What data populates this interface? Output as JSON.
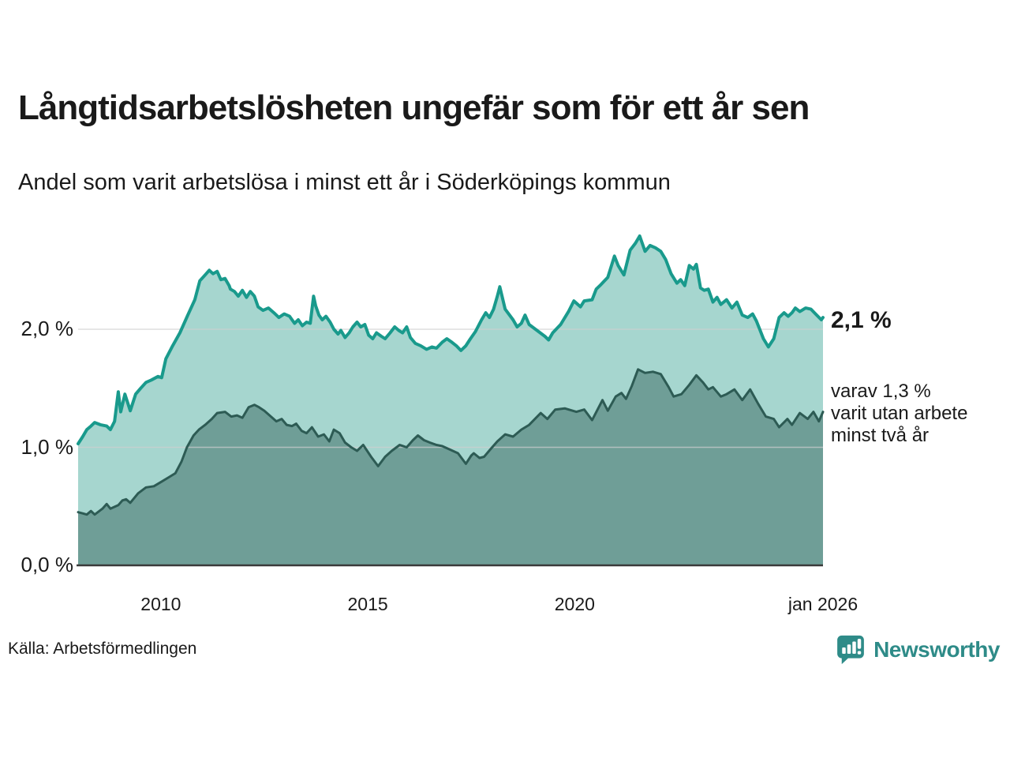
{
  "header": {
    "title": "Långtidsarbetslösheten ungefär som för ett år sen",
    "subtitle": "Andel som varit arbetslösa i minst ett år i Söderköpings kommun"
  },
  "annotations": {
    "latest_total": "2,1 %",
    "latest_two_year_lines": [
      "varav 1,3 %",
      "varit utan arbete",
      "minst två år"
    ]
  },
  "footer": {
    "source": "Källa: Arbetsförmedlingen",
    "brand": "Newsworthy"
  },
  "colors": {
    "total_line": "#199a8c",
    "total_fill": "#a6d6cf",
    "two_year_line": "#2d5b54",
    "two_year_fill": "#6f9e97",
    "gridline": "#cfcfcf",
    "baseline": "#3a3a3a",
    "text": "#1a1a1a",
    "brand_teal": "#2e8b88"
  },
  "chart_data": {
    "type": "area",
    "title": "Långtidsarbetslösheten ungefär som för ett år sen",
    "subtitle": "Andel som varit arbetslösa i minst ett år i Söderköpings kommun",
    "unit": "%",
    "grid": "horizontal",
    "x_axis": {
      "min": 2008.0,
      "max": 2026.0,
      "ticks": [
        {
          "value": 2010.0,
          "label": "2010"
        },
        {
          "value": 2015.0,
          "label": "2015"
        },
        {
          "value": 2020.0,
          "label": "2020"
        },
        {
          "value": 2026.0,
          "label": "jan 2026"
        }
      ]
    },
    "y_axis": {
      "min": 0.0,
      "max": 2.85,
      "ticks": [
        {
          "value": 0.0,
          "label": "0,0 %"
        },
        {
          "value": 1.0,
          "label": "1,0 %"
        },
        {
          "value": 2.0,
          "label": "2,0 %"
        }
      ]
    },
    "series": [
      {
        "name": "arbetslosa-minst-ett-ar",
        "label": "Arbetslösa minst ett år",
        "end_label": "2,1 %",
        "latest_value": 2.1,
        "color": "#199a8c",
        "fill": "#a6d6cf",
        "stroke_width": 4,
        "x": [
          2008.0,
          2008.11,
          2008.21,
          2008.31,
          2008.4,
          2008.55,
          2008.69,
          2008.78,
          2008.88,
          2008.97,
          2009.03,
          2009.13,
          2009.26,
          2009.39,
          2009.51,
          2009.64,
          2009.77,
          2009.93,
          2010.02,
          2010.12,
          2010.27,
          2010.46,
          2010.65,
          2010.82,
          2010.94,
          2011.07,
          2011.17,
          2011.26,
          2011.36,
          2011.45,
          2011.55,
          2011.65,
          2011.68,
          2011.78,
          2011.87,
          2011.97,
          2012.07,
          2012.16,
          2012.26,
          2012.35,
          2012.47,
          2012.6,
          2012.73,
          2012.85,
          2012.98,
          2013.11,
          2013.23,
          2013.32,
          2013.42,
          2013.52,
          2013.61,
          2013.69,
          2013.74,
          2013.82,
          2013.9,
          2013.99,
          2014.09,
          2014.18,
          2014.28,
          2014.35,
          2014.45,
          2014.55,
          2014.64,
          2014.74,
          2014.83,
          2014.93,
          2015.02,
          2015.12,
          2015.21,
          2015.33,
          2015.42,
          2015.54,
          2015.65,
          2015.75,
          2015.84,
          2015.94,
          2016.03,
          2016.15,
          2016.28,
          2016.42,
          2016.55,
          2016.66,
          2016.8,
          2016.91,
          2017.03,
          2017.14,
          2017.25,
          2017.37,
          2017.48,
          2017.6,
          2017.75,
          2017.85,
          2017.94,
          2018.04,
          2018.13,
          2018.19,
          2018.32,
          2018.51,
          2018.61,
          2018.71,
          2018.8,
          2018.9,
          2019.09,
          2019.28,
          2019.37,
          2019.47,
          2019.66,
          2019.85,
          2019.98,
          2020.14,
          2020.23,
          2020.42,
          2020.52,
          2020.61,
          2020.8,
          2020.96,
          2021.05,
          2021.19,
          2021.34,
          2021.47,
          2021.57,
          2021.7,
          2021.82,
          2021.95,
          2022.08,
          2022.2,
          2022.33,
          2022.47,
          2022.56,
          2022.66,
          2022.77,
          2022.87,
          2022.94,
          2023.04,
          2023.13,
          2023.23,
          2023.34,
          2023.44,
          2023.53,
          2023.67,
          2023.8,
          2023.92,
          2024.05,
          2024.18,
          2024.3,
          2024.39,
          2024.47,
          2024.56,
          2024.68,
          2024.81,
          2024.94,
          2025.06,
          2025.16,
          2025.25,
          2025.33,
          2025.44,
          2025.58,
          2025.71,
          2025.82,
          2025.96,
          2026.0
        ],
        "values": [
          1.03,
          1.09,
          1.15,
          1.18,
          1.21,
          1.19,
          1.18,
          1.15,
          1.22,
          1.47,
          1.3,
          1.45,
          1.31,
          1.45,
          1.5,
          1.55,
          1.57,
          1.6,
          1.59,
          1.75,
          1.85,
          1.97,
          2.12,
          2.25,
          2.41,
          2.46,
          2.5,
          2.47,
          2.49,
          2.42,
          2.43,
          2.37,
          2.34,
          2.32,
          2.28,
          2.33,
          2.27,
          2.32,
          2.28,
          2.19,
          2.16,
          2.18,
          2.14,
          2.1,
          2.13,
          2.11,
          2.05,
          2.08,
          2.03,
          2.06,
          2.05,
          2.28,
          2.2,
          2.12,
          2.08,
          2.11,
          2.06,
          2.0,
          1.96,
          1.99,
          1.93,
          1.97,
          2.02,
          2.06,
          2.02,
          2.04,
          1.95,
          1.92,
          1.97,
          1.94,
          1.92,
          1.97,
          2.02,
          1.99,
          1.97,
          2.02,
          1.93,
          1.88,
          1.86,
          1.83,
          1.85,
          1.84,
          1.89,
          1.92,
          1.89,
          1.86,
          1.82,
          1.86,
          1.92,
          1.98,
          2.08,
          2.14,
          2.1,
          2.17,
          2.28,
          2.36,
          2.17,
          2.08,
          2.02,
          2.05,
          2.12,
          2.04,
          1.99,
          1.94,
          1.91,
          1.97,
          2.04,
          2.15,
          2.24,
          2.19,
          2.24,
          2.25,
          2.34,
          2.37,
          2.44,
          2.62,
          2.54,
          2.46,
          2.67,
          2.73,
          2.79,
          2.66,
          2.71,
          2.69,
          2.66,
          2.59,
          2.47,
          2.39,
          2.42,
          2.37,
          2.54,
          2.51,
          2.55,
          2.35,
          2.33,
          2.34,
          2.23,
          2.27,
          2.21,
          2.25,
          2.18,
          2.23,
          2.12,
          2.1,
          2.13,
          2.07,
          2.0,
          1.92,
          1.85,
          1.92,
          2.1,
          2.14,
          2.11,
          2.14,
          2.18,
          2.15,
          2.18,
          2.17,
          2.13,
          2.08,
          2.1
        ]
      },
      {
        "name": "arbetslosa-minst-tva-ar",
        "label": "varav utan arbete minst två år",
        "end_label": "varav 1,3 % varit utan arbete minst två år",
        "latest_value": 1.3,
        "color": "#2d5b54",
        "fill": "#6f9e97",
        "stroke_width": 3,
        "x": [
          2008.0,
          2008.11,
          2008.21,
          2008.31,
          2008.4,
          2008.59,
          2008.69,
          2008.78,
          2008.97,
          2009.07,
          2009.16,
          2009.26,
          2009.45,
          2009.64,
          2009.83,
          2010.02,
          2010.21,
          2010.35,
          2010.5,
          2010.63,
          2010.79,
          2010.92,
          2011.07,
          2011.23,
          2011.36,
          2011.55,
          2011.7,
          2011.84,
          2011.97,
          2012.12,
          2012.26,
          2012.37,
          2012.5,
          2012.66,
          2012.79,
          2012.92,
          2013.04,
          2013.17,
          2013.27,
          2013.4,
          2013.52,
          2013.65,
          2013.8,
          2013.94,
          2014.07,
          2014.18,
          2014.32,
          2014.45,
          2014.6,
          2014.74,
          2014.89,
          2015.08,
          2015.25,
          2015.42,
          2015.58,
          2015.77,
          2015.94,
          2016.09,
          2016.21,
          2016.36,
          2016.5,
          2016.66,
          2016.8,
          2016.99,
          2017.18,
          2017.37,
          2017.5,
          2017.56,
          2017.7,
          2017.81,
          2017.98,
          2018.13,
          2018.32,
          2018.51,
          2018.71,
          2018.9,
          2019.18,
          2019.34,
          2019.53,
          2019.76,
          2020.04,
          2020.23,
          2020.42,
          2020.67,
          2020.8,
          2020.99,
          2021.13,
          2021.24,
          2021.38,
          2021.53,
          2021.7,
          2021.89,
          2022.08,
          2022.27,
          2022.39,
          2022.58,
          2022.77,
          2022.94,
          2023.1,
          2023.23,
          2023.34,
          2023.53,
          2023.67,
          2023.86,
          2024.05,
          2024.24,
          2024.43,
          2024.62,
          2024.81,
          2024.94,
          2025.14,
          2025.25,
          2025.44,
          2025.63,
          2025.77,
          2025.9,
          2026.0
        ],
        "values": [
          0.45,
          0.44,
          0.43,
          0.46,
          0.43,
          0.48,
          0.52,
          0.48,
          0.51,
          0.55,
          0.56,
          0.53,
          0.61,
          0.66,
          0.67,
          0.71,
          0.75,
          0.78,
          0.88,
          1.0,
          1.1,
          1.15,
          1.19,
          1.24,
          1.29,
          1.3,
          1.26,
          1.27,
          1.25,
          1.34,
          1.36,
          1.34,
          1.31,
          1.26,
          1.22,
          1.24,
          1.19,
          1.18,
          1.2,
          1.14,
          1.12,
          1.17,
          1.09,
          1.11,
          1.05,
          1.15,
          1.12,
          1.04,
          1.0,
          0.97,
          1.02,
          0.92,
          0.84,
          0.92,
          0.97,
          1.02,
          1.0,
          1.06,
          1.1,
          1.06,
          1.04,
          1.02,
          1.01,
          0.98,
          0.95,
          0.86,
          0.93,
          0.95,
          0.91,
          0.92,
          0.99,
          1.05,
          1.11,
          1.09,
          1.15,
          1.19,
          1.29,
          1.24,
          1.32,
          1.33,
          1.3,
          1.32,
          1.23,
          1.4,
          1.31,
          1.43,
          1.46,
          1.41,
          1.52,
          1.66,
          1.63,
          1.64,
          1.62,
          1.51,
          1.43,
          1.45,
          1.53,
          1.61,
          1.55,
          1.49,
          1.51,
          1.43,
          1.45,
          1.49,
          1.4,
          1.49,
          1.37,
          1.26,
          1.24,
          1.17,
          1.24,
          1.19,
          1.29,
          1.24,
          1.3,
          1.22,
          1.3
        ]
      }
    ]
  }
}
